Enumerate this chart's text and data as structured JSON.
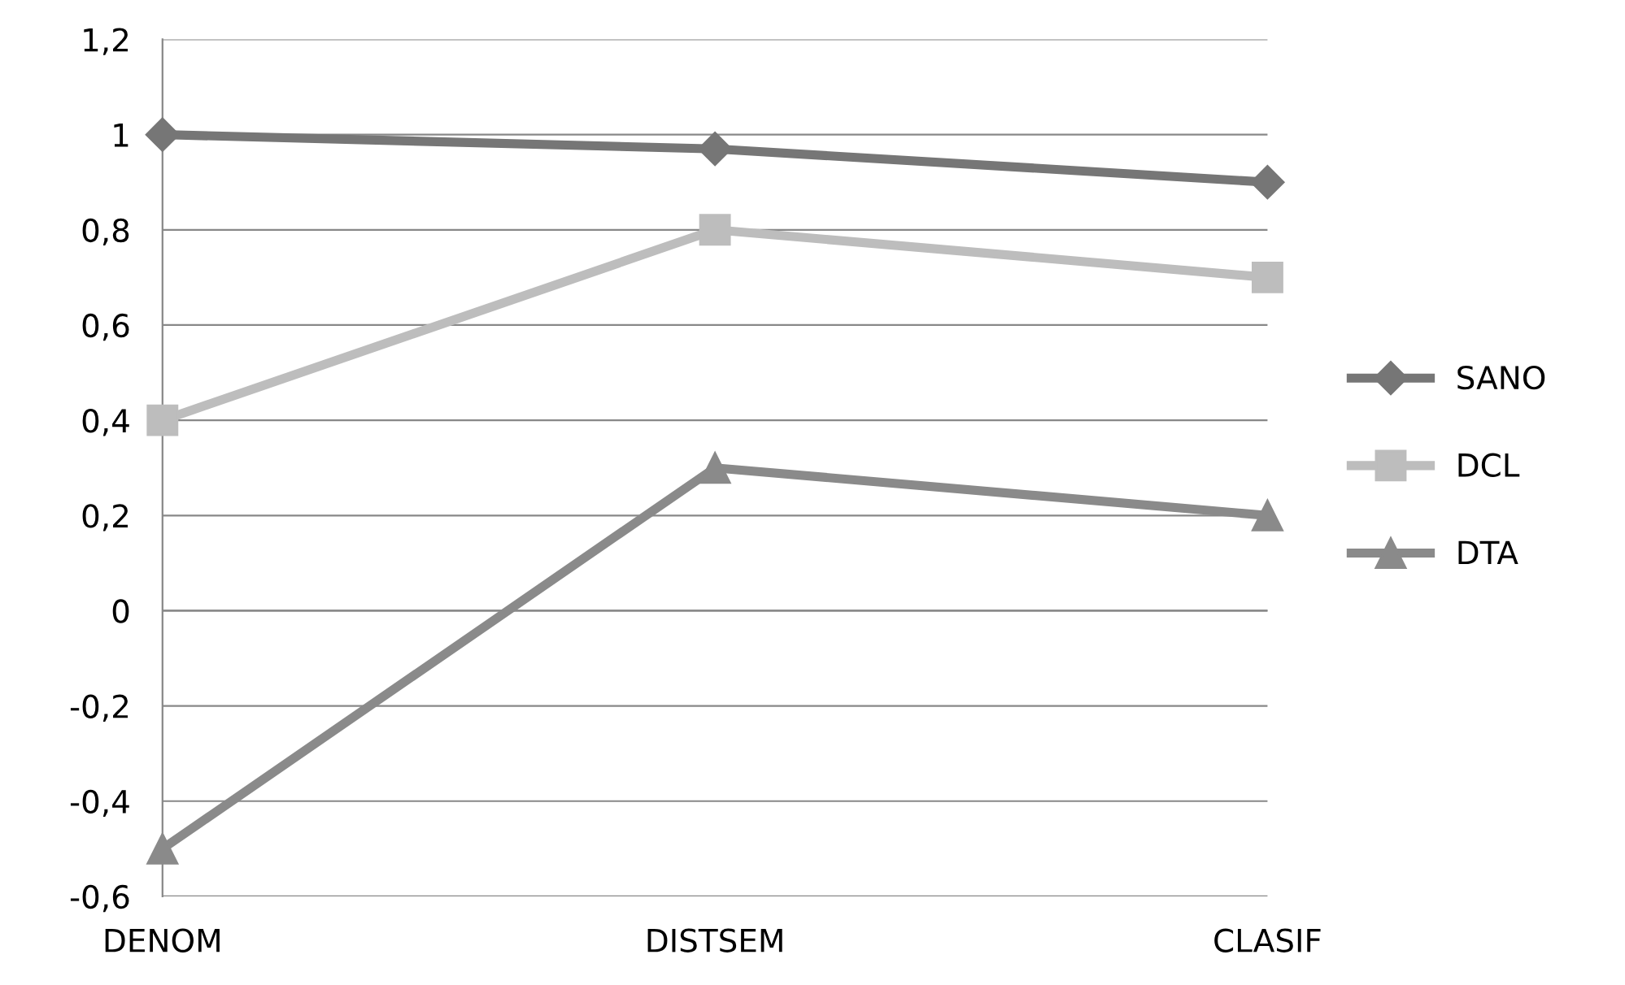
{
  "chart_data": {
    "type": "line",
    "categories": [
      "DENOM",
      "DISTSEM",
      "CLASIF"
    ],
    "series": [
      {
        "name": "SANO",
        "color": "#767676",
        "marker": "diamond",
        "values": [
          1,
          0.97,
          0.9
        ]
      },
      {
        "name": "DCL",
        "color": "#bdbdbd",
        "marker": "square",
        "values": [
          0.4,
          0.8,
          0.7
        ]
      },
      {
        "name": "DTA",
        "color": "#8a8a8a",
        "marker": "triangle",
        "values": [
          -0.5,
          0.3,
          0.2
        ]
      }
    ],
    "ylim": [
      -0.6,
      1.2
    ],
    "yticks": [
      {
        "value": -0.6,
        "label": "-0,6"
      },
      {
        "value": -0.4,
        "label": "-0,4"
      },
      {
        "value": -0.2,
        "label": "-0,2"
      },
      0,
      {
        "value": 0.2,
        "label": "0,2"
      },
      {
        "value": 0.4,
        "label": "0,4"
      },
      {
        "value": 0.6,
        "label": "0,6"
      },
      {
        "value": 0.8,
        "label": "0,8"
      },
      1,
      {
        "value": 1.2,
        "label": "1,2"
      }
    ],
    "grid": "y",
    "legend": "right",
    "line_style": "solid"
  }
}
